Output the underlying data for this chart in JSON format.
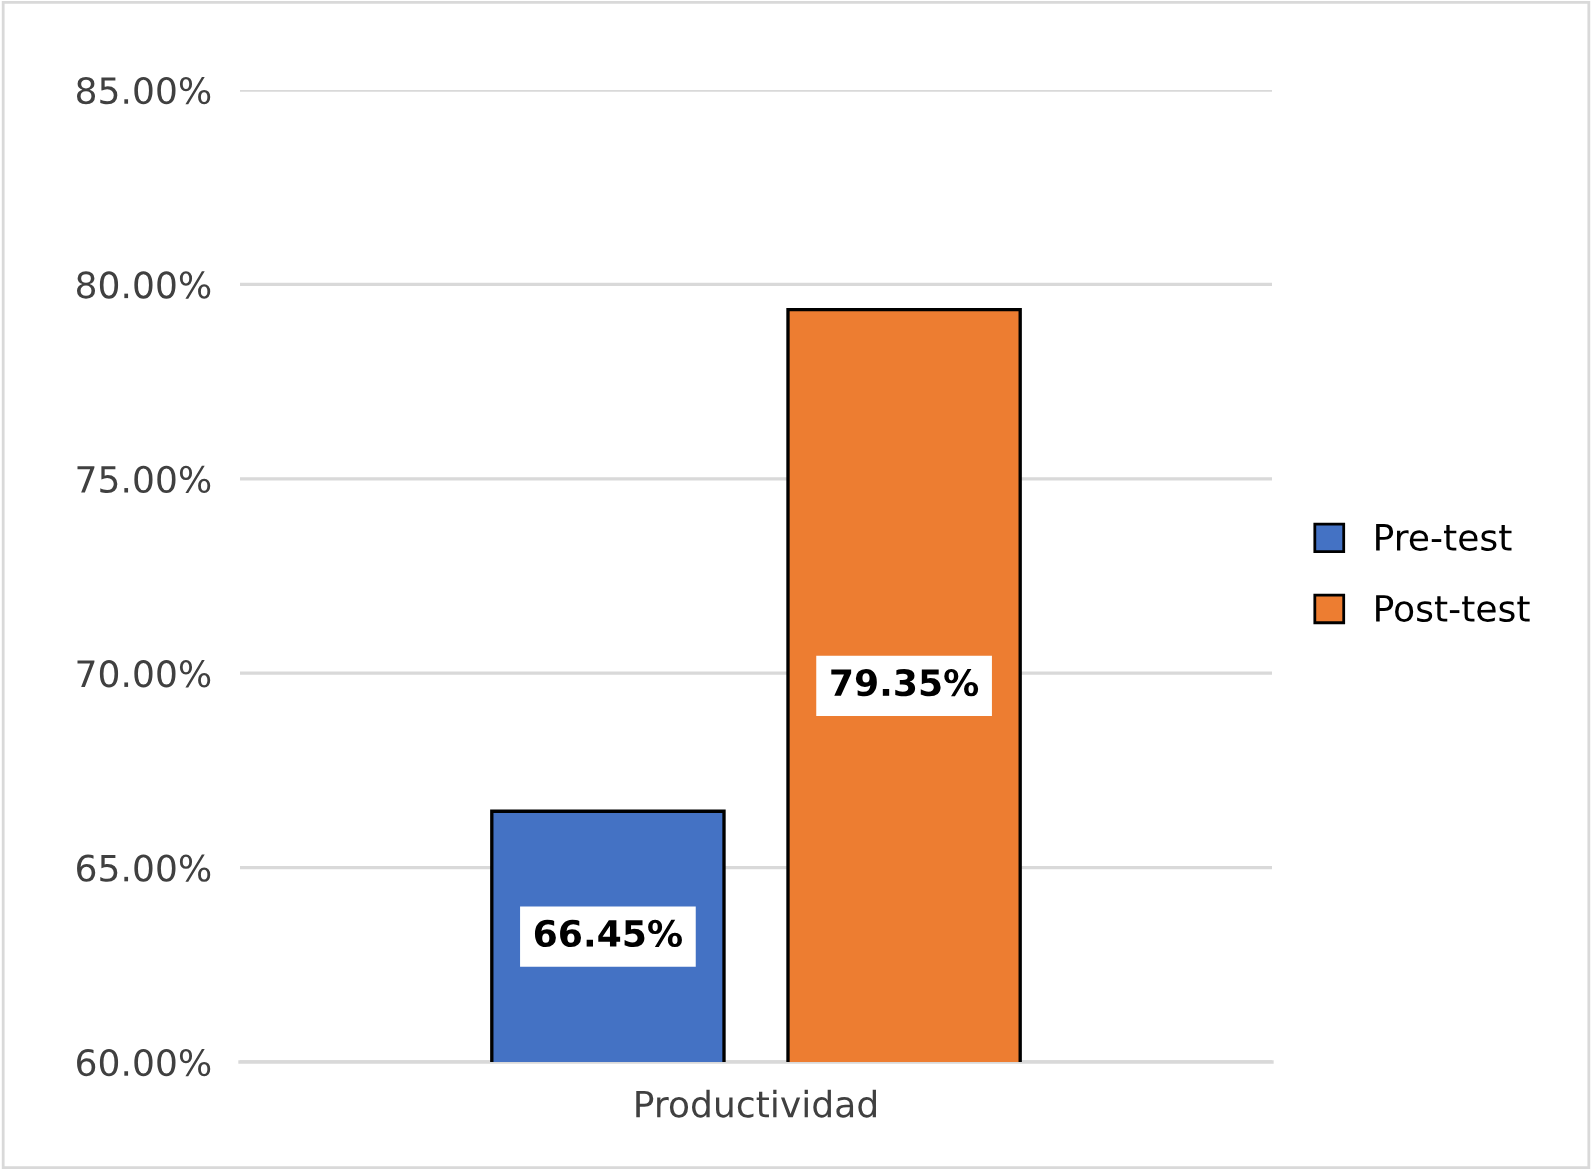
{
  "chart_data": {
    "type": "bar",
    "categories": [
      "Productividad"
    ],
    "series": [
      {
        "name": "Pre-test",
        "color": "#4472c4",
        "values": [
          66.45
        ],
        "value_labels": [
          "66.45%"
        ]
      },
      {
        "name": "Post-test",
        "color": "#ed7d31",
        "values": [
          79.35
        ],
        "value_labels": [
          "79.35%"
        ]
      }
    ],
    "ylim": [
      60,
      85
    ],
    "yticks": [
      {
        "value": 60,
        "label": "60.00%"
      },
      {
        "value": 65,
        "label": "65.00%"
      },
      {
        "value": 70,
        "label": "70.00%"
      },
      {
        "value": 75,
        "label": "75.00%"
      },
      {
        "value": 80,
        "label": "80.00%"
      },
      {
        "value": 85,
        "label": "85.00%"
      }
    ],
    "grid": "y",
    "legend": "right"
  }
}
